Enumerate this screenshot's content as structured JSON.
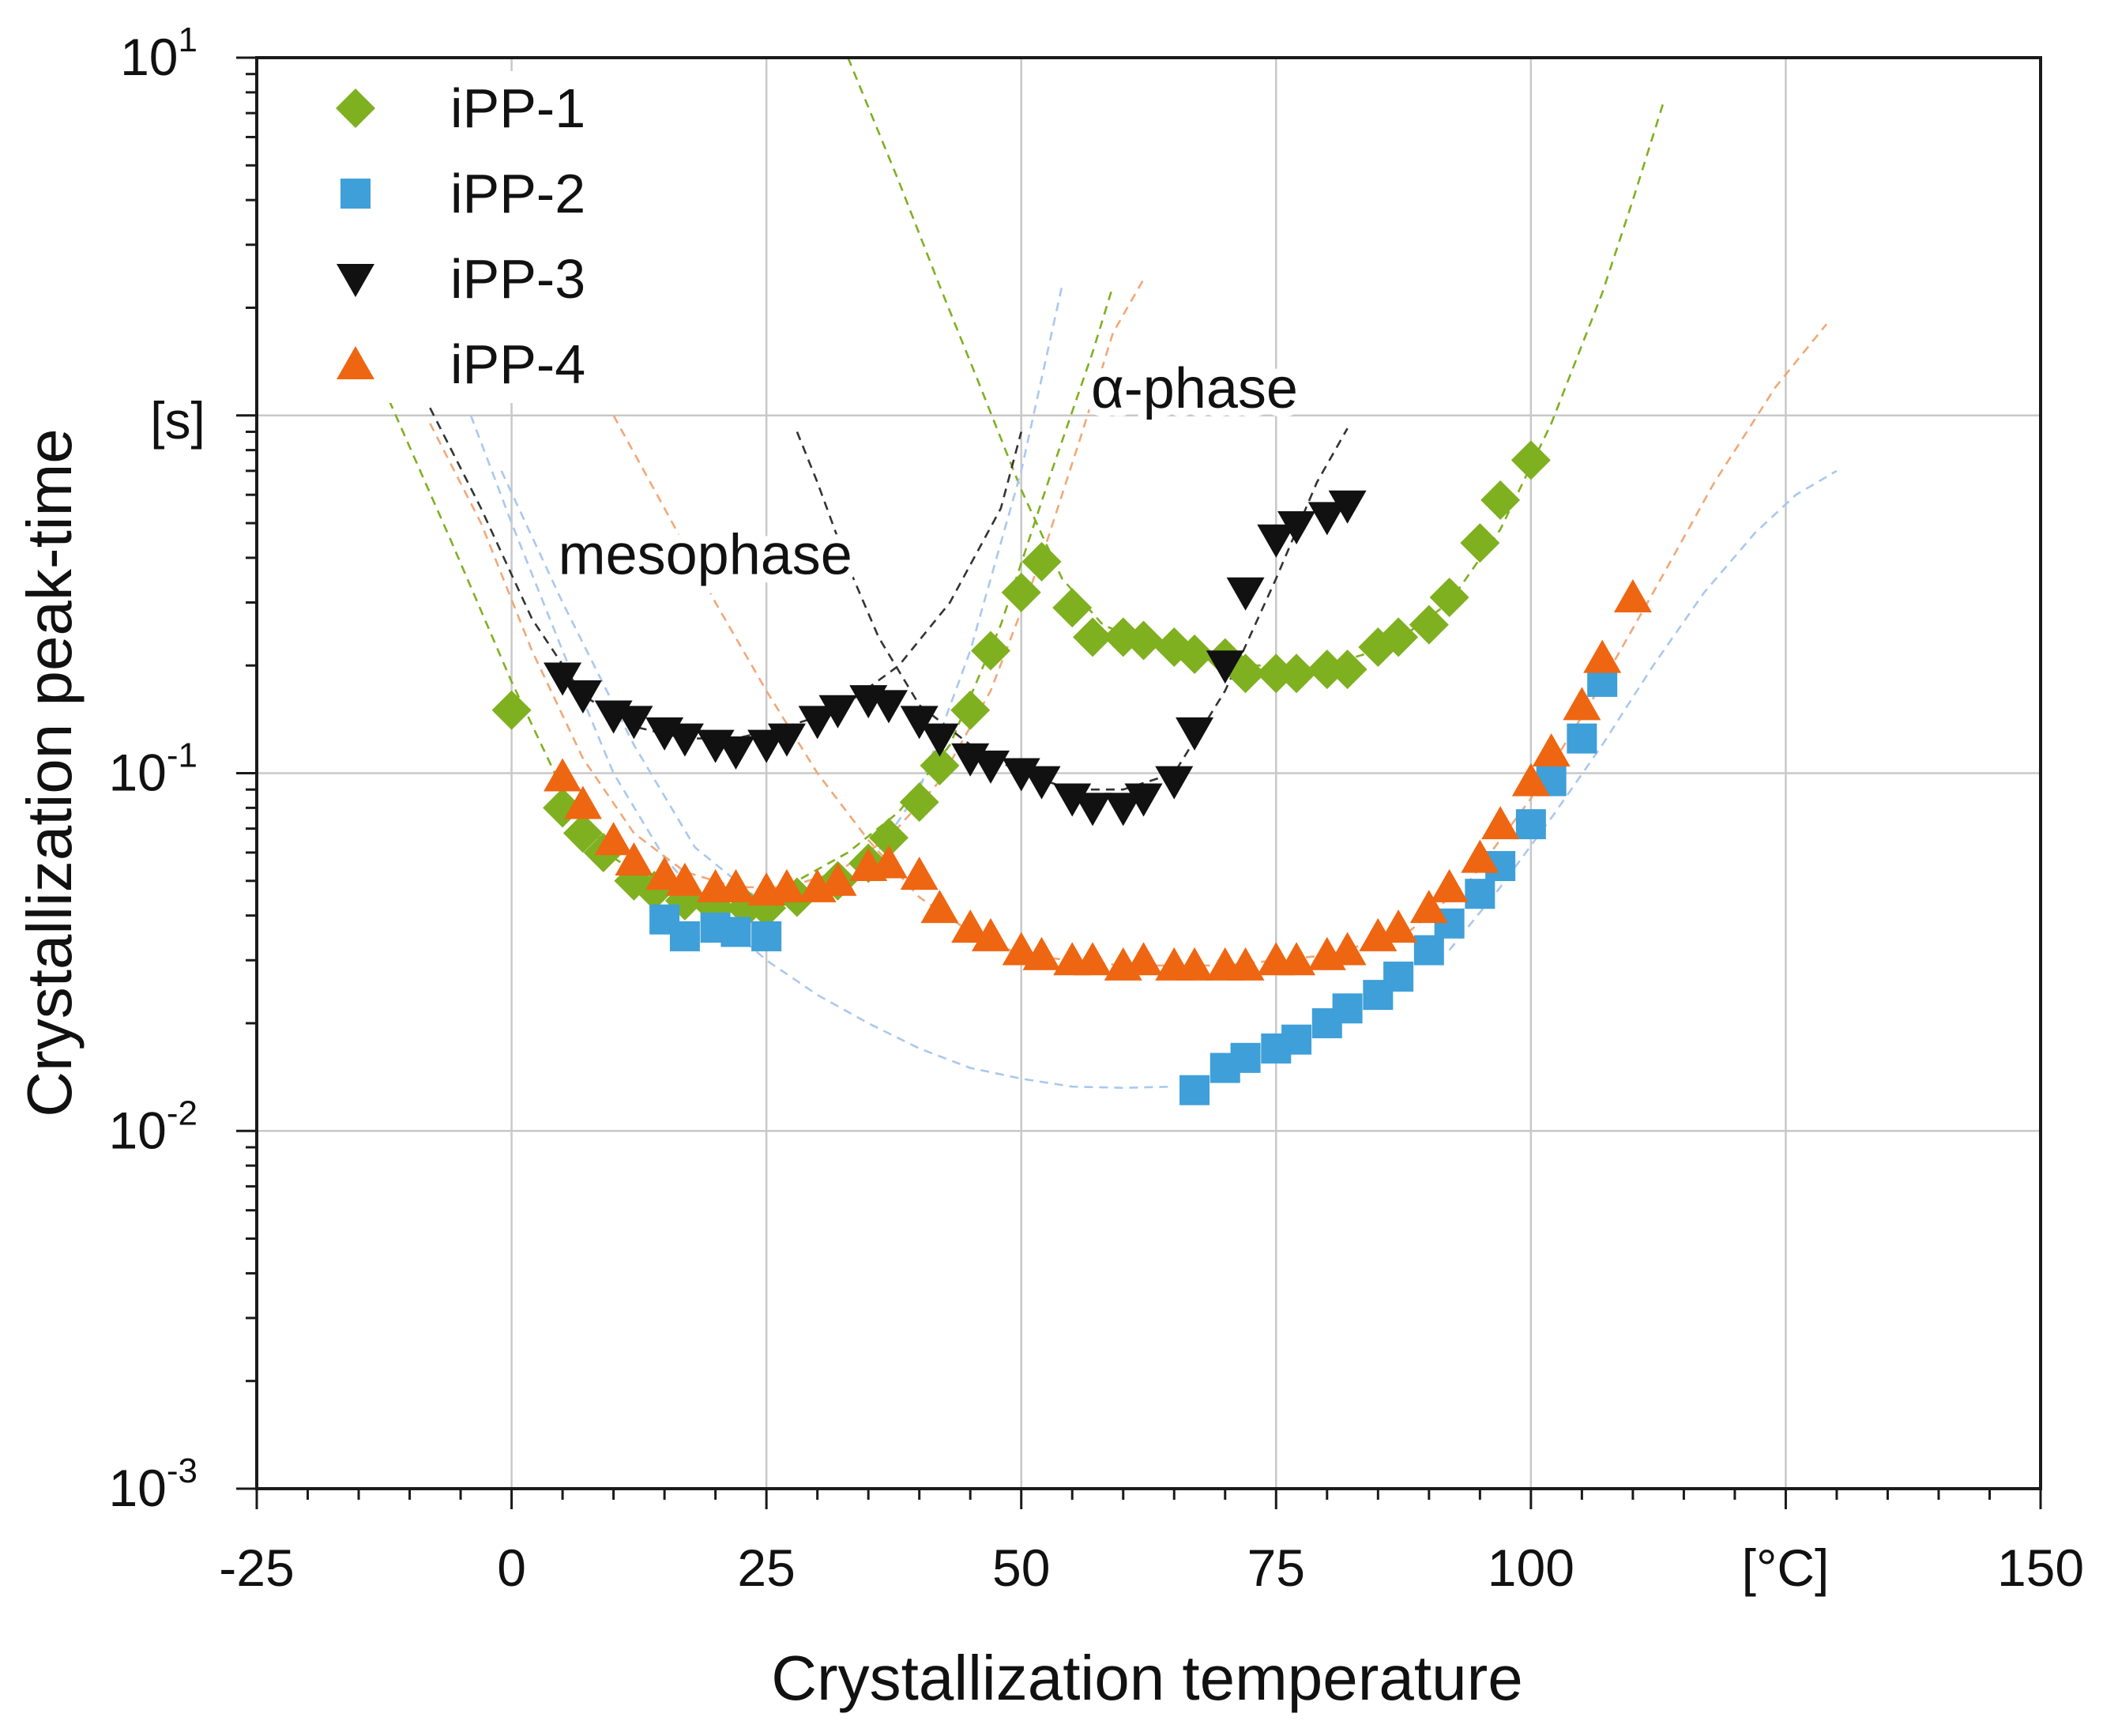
{
  "chart_data": {
    "type": "scatter",
    "title": "",
    "xlabel": "Crystallization temperature",
    "ylabel": "Crystallization peak-time",
    "x_unit": "[°C]",
    "y_unit": "[s]",
    "xlim": [
      -25,
      150
    ],
    "ylim": [
      0.001,
      10
    ],
    "yscale": "log",
    "grid": true,
    "legend_position": "top-left",
    "x_ticks": [
      {
        "value": -25,
        "label": "-25"
      },
      {
        "value": 0,
        "label": "0"
      },
      {
        "value": 25,
        "label": "25"
      },
      {
        "value": 50,
        "label": "50"
      },
      {
        "value": 75,
        "label": "75"
      },
      {
        "value": 100,
        "label": "100"
      },
      {
        "value": 150,
        "label": "150"
      }
    ],
    "y_ticks": [
      {
        "value": 10,
        "base": "10",
        "exp": "1"
      },
      {
        "value": 0.1,
        "base": "10",
        "exp": "-1"
      },
      {
        "value": 0.01,
        "base": "10",
        "exp": "-2"
      },
      {
        "value": 0.001,
        "base": "10",
        "exp": "-3"
      }
    ],
    "series": [
      {
        "name": "iPP-1",
        "color": "#7fb020",
        "marker": "diamond",
        "points": [
          [
            0,
            0.15
          ],
          [
            5,
            0.08
          ],
          [
            7,
            0.068
          ],
          [
            9,
            0.06
          ],
          [
            12,
            0.05
          ],
          [
            14,
            0.047
          ],
          [
            17,
            0.044
          ],
          [
            20,
            0.042
          ],
          [
            23,
            0.042
          ],
          [
            25,
            0.042
          ],
          [
            28,
            0.045
          ],
          [
            32,
            0.05
          ],
          [
            35,
            0.056
          ],
          [
            37,
            0.066
          ],
          [
            40,
            0.083
          ],
          [
            42,
            0.105
          ],
          [
            45,
            0.15
          ],
          [
            47,
            0.22
          ],
          [
            50,
            0.32
          ],
          [
            52,
            0.39
          ],
          [
            55,
            0.29
          ],
          [
            57,
            0.24
          ],
          [
            60,
            0.24
          ],
          [
            62,
            0.235
          ],
          [
            65,
            0.225
          ],
          [
            67,
            0.215
          ],
          [
            70,
            0.21
          ],
          [
            72,
            0.19
          ],
          [
            75,
            0.19
          ],
          [
            77,
            0.19
          ],
          [
            80,
            0.195
          ],
          [
            82,
            0.195
          ],
          [
            85,
            0.225
          ],
          [
            87,
            0.24
          ],
          [
            90,
            0.26
          ],
          [
            92,
            0.31
          ],
          [
            95,
            0.44
          ],
          [
            97,
            0.58
          ],
          [
            100,
            0.75
          ]
        ]
      },
      {
        "name": "iPP-2",
        "color": "#3f9fd8",
        "marker": "square",
        "points": [
          [
            15,
            0.039
          ],
          [
            17,
            0.035
          ],
          [
            20,
            0.037
          ],
          [
            22,
            0.036
          ],
          [
            25,
            0.035
          ],
          [
            67,
            0.013
          ],
          [
            70,
            0.015
          ],
          [
            72,
            0.016
          ],
          [
            75,
            0.017
          ],
          [
            77,
            0.018
          ],
          [
            80,
            0.02
          ],
          [
            82,
            0.022
          ],
          [
            85,
            0.024
          ],
          [
            87,
            0.027
          ],
          [
            90,
            0.032
          ],
          [
            92,
            0.038
          ],
          [
            95,
            0.046
          ],
          [
            97,
            0.055
          ],
          [
            100,
            0.072
          ],
          [
            102,
            0.095
          ],
          [
            105,
            0.125
          ],
          [
            107,
            0.18
          ]
        ]
      },
      {
        "name": "iPP-3",
        "color": "#111111",
        "marker": "triangle-down",
        "points": [
          [
            5,
            0.185
          ],
          [
            7,
            0.165
          ],
          [
            10,
            0.145
          ],
          [
            12,
            0.14
          ],
          [
            15,
            0.13
          ],
          [
            17,
            0.125
          ],
          [
            20,
            0.12
          ],
          [
            22,
            0.115
          ],
          [
            25,
            0.12
          ],
          [
            27,
            0.125
          ],
          [
            30,
            0.14
          ],
          [
            32,
            0.15
          ],
          [
            35,
            0.16
          ],
          [
            37,
            0.155
          ],
          [
            40,
            0.14
          ],
          [
            42,
            0.125
          ],
          [
            45,
            0.11
          ],
          [
            47,
            0.105
          ],
          [
            50,
            0.1
          ],
          [
            52,
            0.095
          ],
          [
            55,
            0.085
          ],
          [
            57,
            0.08
          ],
          [
            60,
            0.08
          ],
          [
            62,
            0.085
          ],
          [
            65,
            0.095
          ],
          [
            67,
            0.13
          ],
          [
            70,
            0.2
          ],
          [
            72,
            0.32
          ],
          [
            75,
            0.45
          ],
          [
            77,
            0.49
          ],
          [
            80,
            0.52
          ],
          [
            82,
            0.56
          ]
        ]
      },
      {
        "name": "iPP-4",
        "color": "#ee6611",
        "marker": "triangle-up",
        "points": [
          [
            5,
            0.098
          ],
          [
            7,
            0.082
          ],
          [
            10,
            0.065
          ],
          [
            12,
            0.057
          ],
          [
            15,
            0.052
          ],
          [
            17,
            0.05
          ],
          [
            20,
            0.048
          ],
          [
            22,
            0.048
          ],
          [
            25,
            0.047
          ],
          [
            27,
            0.048
          ],
          [
            30,
            0.048
          ],
          [
            32,
            0.05
          ],
          [
            35,
            0.055
          ],
          [
            37,
            0.056
          ],
          [
            40,
            0.052
          ],
          [
            42,
            0.042
          ],
          [
            45,
            0.037
          ],
          [
            47,
            0.035
          ],
          [
            50,
            0.032
          ],
          [
            52,
            0.031
          ],
          [
            55,
            0.03
          ],
          [
            57,
            0.03
          ],
          [
            60,
            0.029
          ],
          [
            62,
            0.03
          ],
          [
            65,
            0.029
          ],
          [
            67,
            0.029
          ],
          [
            70,
            0.029
          ],
          [
            72,
            0.029
          ],
          [
            75,
            0.03
          ],
          [
            77,
            0.03
          ],
          [
            80,
            0.031
          ],
          [
            82,
            0.032
          ],
          [
            85,
            0.035
          ],
          [
            87,
            0.037
          ],
          [
            90,
            0.042
          ],
          [
            92,
            0.048
          ],
          [
            95,
            0.058
          ],
          [
            97,
            0.072
          ],
          [
            100,
            0.095
          ],
          [
            102,
            0.115
          ],
          [
            105,
            0.155
          ],
          [
            107,
            0.21
          ],
          [
            110,
            0.31
          ]
        ]
      }
    ],
    "fit_curves": [
      {
        "series": "iPP-1",
        "color": "#7fb020",
        "points": [
          [
            -12,
            1.1
          ],
          [
            -6,
            0.45
          ],
          [
            0,
            0.18
          ],
          [
            5,
            0.09
          ],
          [
            10,
            0.058
          ],
          [
            15,
            0.047
          ],
          [
            20,
            0.043
          ],
          [
            25,
            0.043
          ],
          [
            30,
            0.047
          ]
        ]
      },
      {
        "series": "iPP-1",
        "color": "#7fb020",
        "points": [
          [
            22,
            0.04
          ],
          [
            28,
            0.05
          ],
          [
            33,
            0.06
          ],
          [
            38,
            0.078
          ],
          [
            43,
            0.12
          ],
          [
            48,
            0.26
          ],
          [
            53,
            0.7
          ],
          [
            57,
            1.5
          ],
          [
            59,
            2.3
          ]
        ]
      },
      {
        "series": "iPP-1",
        "color": "#7fb020",
        "points": [
          [
            33,
            10
          ],
          [
            38,
            4.5
          ],
          [
            42,
            2.3
          ],
          [
            46,
            1.2
          ],
          [
            50,
            0.62
          ],
          [
            54,
            0.35
          ],
          [
            58,
            0.26
          ],
          [
            64,
            0.22
          ],
          [
            72,
            0.2
          ],
          [
            80,
            0.2
          ],
          [
            86,
            0.225
          ],
          [
            92,
            0.3
          ],
          [
            97,
            0.48
          ],
          [
            102,
            0.95
          ],
          [
            107,
            2.2
          ],
          [
            110,
            4
          ],
          [
            113,
            7.5
          ]
        ]
      },
      {
        "series": "iPP-2",
        "color": "#a9c8ee",
        "points": [
          [
            -4,
            1.0
          ],
          [
            0,
            0.5
          ],
          [
            5,
            0.22
          ],
          [
            10,
            0.1
          ],
          [
            15,
            0.058
          ],
          [
            20,
            0.04
          ],
          [
            25,
            0.03
          ],
          [
            30,
            0.024
          ],
          [
            35,
            0.02
          ],
          [
            40,
            0.017
          ],
          [
            45,
            0.015
          ],
          [
            50,
            0.014
          ],
          [
            55,
            0.0133
          ],
          [
            60,
            0.0132
          ],
          [
            65,
            0.0133
          ]
        ]
      },
      {
        "series": "iPP-2",
        "color": "#a9c8ee",
        "points": [
          [
            -1,
            0.7
          ],
          [
            5,
            0.3
          ],
          [
            12,
            0.12
          ],
          [
            18,
            0.062
          ],
          [
            24,
            0.045
          ],
          [
            30,
            0.044
          ],
          [
            35,
            0.055
          ],
          [
            40,
            0.09
          ],
          [
            45,
            0.22
          ],
          [
            50,
            0.7
          ],
          [
            54,
            2.3
          ]
        ]
      },
      {
        "series": "iPP-2",
        "color": "#a9c8ee",
        "points": [
          [
            92,
            0.032
          ],
          [
            97,
            0.048
          ],
          [
            102,
            0.075
          ],
          [
            107,
            0.12
          ],
          [
            112,
            0.2
          ],
          [
            117,
            0.32
          ],
          [
            122,
            0.47
          ],
          [
            126,
            0.6
          ],
          [
            130,
            0.7
          ]
        ]
      },
      {
        "series": "iPP-3",
        "color": "#333333",
        "points": [
          [
            -8,
            1.05
          ],
          [
            -3,
            0.55
          ],
          [
            2,
            0.27
          ],
          [
            7,
            0.165
          ],
          [
            12,
            0.135
          ],
          [
            17,
            0.125
          ],
          [
            22,
            0.125
          ],
          [
            27,
            0.135
          ],
          [
            32,
            0.15
          ],
          [
            38,
            0.2
          ],
          [
            43,
            0.3
          ],
          [
            48,
            0.55
          ],
          [
            50,
            0.9
          ]
        ]
      },
      {
        "series": "iPP-3",
        "color": "#333333",
        "points": [
          [
            28,
            0.9
          ],
          [
            30,
            0.65
          ],
          [
            33,
            0.38
          ],
          [
            36,
            0.24
          ],
          [
            40,
            0.155
          ],
          [
            45,
            0.12
          ],
          [
            50,
            0.1
          ],
          [
            55,
            0.09
          ],
          [
            60,
            0.09
          ],
          [
            65,
            0.1
          ],
          [
            70,
            0.17
          ],
          [
            75,
            0.35
          ],
          [
            79,
            0.65
          ],
          [
            82,
            0.92
          ]
        ]
      },
      {
        "series": "iPP-4",
        "color": "#f0a878",
        "points": [
          [
            -8,
            0.95
          ],
          [
            -3,
            0.5
          ],
          [
            2,
            0.22
          ],
          [
            7,
            0.11
          ],
          [
            12,
            0.068
          ],
          [
            17,
            0.053
          ],
          [
            22,
            0.048
          ],
          [
            27,
            0.048
          ],
          [
            32,
            0.053
          ],
          [
            37,
            0.066
          ],
          [
            42,
            0.095
          ],
          [
            47,
            0.17
          ],
          [
            52,
            0.4
          ],
          [
            56,
            0.9
          ],
          [
            59,
            1.7
          ],
          [
            62,
            2.4
          ]
        ]
      },
      {
        "series": "iPP-4",
        "color": "#f0a878",
        "points": [
          [
            10,
            1.0
          ],
          [
            15,
            0.55
          ],
          [
            20,
            0.3
          ],
          [
            25,
            0.17
          ],
          [
            30,
            0.1
          ],
          [
            35,
            0.065
          ],
          [
            40,
            0.045
          ],
          [
            45,
            0.036
          ],
          [
            50,
            0.031
          ],
          [
            60,
            0.029
          ],
          [
            70,
            0.029
          ],
          [
            80,
            0.031
          ],
          [
            88,
            0.036
          ],
          [
            94,
            0.05
          ],
          [
            100,
            0.085
          ],
          [
            106,
            0.16
          ],
          [
            112,
            0.32
          ],
          [
            118,
            0.65
          ],
          [
            124,
            1.2
          ],
          [
            129,
            1.8
          ]
        ]
      }
    ],
    "annotations": [
      {
        "text": "mesophase",
        "x": 19,
        "y": 0.36
      },
      {
        "text": "α-phase",
        "x": 67,
        "y": 1.05
      }
    ]
  }
}
